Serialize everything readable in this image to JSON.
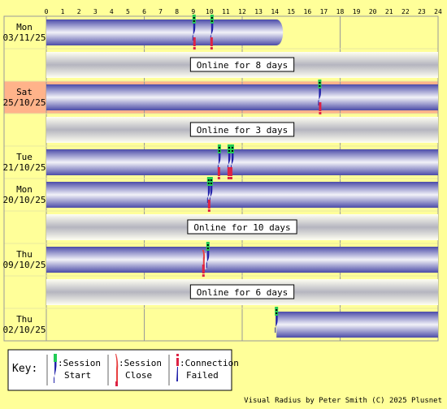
{
  "axis": {
    "hours": [
      "0",
      "1",
      "2",
      "3",
      "4",
      "5",
      "6",
      "7",
      "8",
      "9",
      "10",
      "11",
      "12",
      "13",
      "14",
      "15",
      "16",
      "17",
      "18",
      "19",
      "20",
      "21",
      "22",
      "23",
      "24"
    ]
  },
  "rows": [
    {
      "kind": "day",
      "day": "Mon",
      "date": "03/11/25",
      "bar": [
        0,
        14.9
      ],
      "fade_end": true,
      "events": [
        {
          "t": 9.05,
          "type": "start"
        },
        {
          "t": 10.15,
          "type": "start"
        },
        {
          "t": 9.05,
          "type": "failed"
        },
        {
          "t": 10.1,
          "type": "failed"
        }
      ]
    },
    {
      "kind": "gap",
      "label": "Online for 8 days"
    },
    {
      "kind": "day",
      "day": "Sat",
      "date": "25/10/25",
      "highlight": true,
      "bar": [
        0,
        24
      ],
      "events": [
        {
          "t": 16.75,
          "type": "start"
        },
        {
          "t": 16.75,
          "type": "failed"
        }
      ]
    },
    {
      "kind": "gap",
      "label": "Online for 3 days"
    },
    {
      "kind": "day",
      "day": "Tue",
      "date": "21/10/25",
      "bar": [
        0,
        24
      ],
      "events": [
        {
          "t": 10.6,
          "type": "start"
        },
        {
          "t": 11.2,
          "type": "start"
        },
        {
          "t": 11.4,
          "type": "start"
        },
        {
          "t": 10.55,
          "type": "failed"
        },
        {
          "t": 11.15,
          "type": "failed"
        },
        {
          "t": 11.3,
          "type": "failed"
        }
      ]
    },
    {
      "kind": "day",
      "day": "Mon",
      "date": "20/10/25",
      "bar": [
        0,
        24
      ],
      "events": [
        {
          "t": 9.95,
          "type": "start"
        },
        {
          "t": 10.1,
          "type": "start"
        },
        {
          "t": 9.95,
          "type": "failed"
        }
      ]
    },
    {
      "kind": "gap",
      "label": "Online for 10 days"
    },
    {
      "kind": "day",
      "day": "Thu",
      "date": "09/10/25",
      "bar": [
        0,
        24
      ],
      "events": [
        {
          "t": 9.9,
          "type": "start"
        },
        {
          "t": 9.6,
          "type": "close"
        },
        {
          "t": 9.6,
          "type": "failed"
        }
      ]
    },
    {
      "kind": "gap",
      "label": "Online for 6 days"
    },
    {
      "kind": "day",
      "day": "Thu",
      "date": "02/10/25",
      "bar": [
        14.1,
        24
      ],
      "events": [
        {
          "t": 14.1,
          "type": "start"
        }
      ]
    }
  ],
  "key": {
    "title": "Key:",
    "items": [
      {
        "type": "start",
        "line1": ":Session",
        "line2": "Start"
      },
      {
        "type": "close",
        "line1": ":Session",
        "line2": "Close"
      },
      {
        "type": "failed",
        "line1": ":Connection",
        "line2": "Failed"
      }
    ]
  },
  "footer": "Visual Radius by Peter Smith (C) 2025 Plusnet",
  "colors": {
    "background": "#ffff99",
    "highlight": "#ffb38a",
    "bar_dark": "#4b4ba8",
    "bar_light": "#f2f2f8",
    "gap_light": "#fffff2",
    "gap_dark": "#b5b5bf",
    "start_green": "#22cc55",
    "failed_red": "#dd2244",
    "close_red": "#e84040"
  }
}
